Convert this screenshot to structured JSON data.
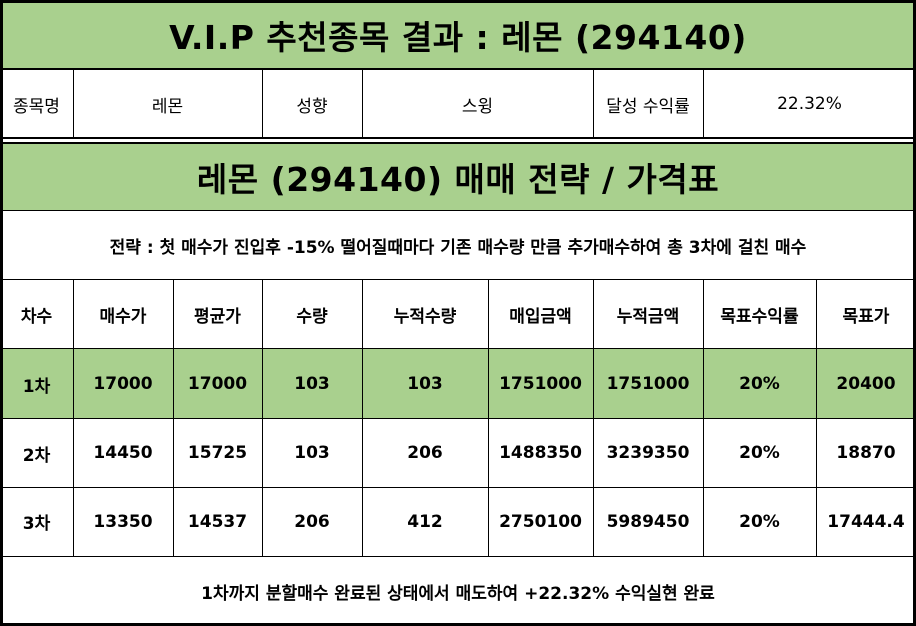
{
  "title": "V.I.P 추천종목 결과 : 레몬 (294140)",
  "info": {
    "stock_label": "종목명",
    "stock_value": "레몬",
    "style_label": "성향",
    "style_value": "스윙",
    "yield_label": "달성 수익률",
    "yield_value": "22.32%"
  },
  "strategy_title": "레몬 (294140) 매매 전략 / 가격표",
  "strategy_text": "전략 : 첫 매수가 진입후 -15% 떨어질때마다 기존 매수량 만큼 추가매수하여 총 3차에 걸친 매수",
  "table": {
    "headers": [
      "차수",
      "매수가",
      "평균가",
      "수량",
      "누적수량",
      "매입금액",
      "누적금액",
      "목표수익률",
      "목표가"
    ],
    "rows": [
      [
        "1차",
        "17000",
        "17000",
        "103",
        "103",
        "1751000",
        "1751000",
        "20%",
        "20400"
      ],
      [
        "2차",
        "14450",
        "15725",
        "103",
        "206",
        "1488350",
        "3239350",
        "20%",
        "18870"
      ],
      [
        "3차",
        "13350",
        "14537",
        "206",
        "412",
        "2750100",
        "5989450",
        "20%",
        "17444.4"
      ]
    ],
    "highlight_row_color": "#a9d08e"
  },
  "footer": "1차까지 분할매수 완료된 상태에서 매도하여 +22.32% 수익실현 완료",
  "colors": {
    "header_green": "#a9d08e",
    "border": "#000000"
  }
}
